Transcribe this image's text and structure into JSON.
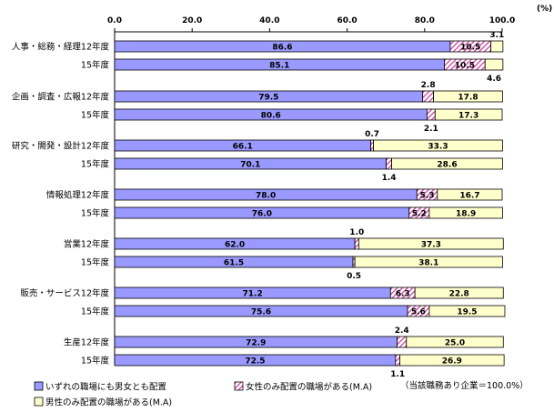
{
  "chart_data": {
    "type": "bar",
    "stacked": true,
    "orientation": "horizontal",
    "unit_label": "(%)",
    "xlim": [
      0,
      100
    ],
    "xticks": [
      "0.0",
      "20.0",
      "40.0",
      "60.0",
      "80.0",
      "100.0"
    ],
    "groups": [
      "人事・総務・経理",
      "企画・調査・広報",
      "研究・開発・設計",
      "情報処理",
      "営業",
      "販売・サービス",
      "生産"
    ],
    "rows": [
      {
        "label": "人事・総務・経理12年度",
        "values": [
          86.6,
          10.5,
          3.1
        ],
        "labels": [
          "86.6",
          "10.5",
          "3.1"
        ]
      },
      {
        "label": "15年度",
        "values": [
          85.1,
          10.5,
          4.6
        ],
        "labels": [
          "85.1",
          "10.5",
          "4.6"
        ]
      },
      {
        "label": "企画・調査・広報12年度",
        "values": [
          79.5,
          2.8,
          17.8
        ],
        "labels": [
          "79.5",
          "2.8",
          "17.8"
        ]
      },
      {
        "label": "15年度",
        "values": [
          80.6,
          2.1,
          17.3
        ],
        "labels": [
          "80.6",
          "2.1",
          "17.3"
        ]
      },
      {
        "label": "研究・開発・設計12年度",
        "values": [
          66.1,
          0.7,
          33.3
        ],
        "labels": [
          "66.1",
          "0.7",
          "33.3"
        ]
      },
      {
        "label": "15年度",
        "values": [
          70.1,
          1.4,
          28.6
        ],
        "labels": [
          "70.1",
          "1.4",
          "28.6"
        ]
      },
      {
        "label": "情報処理12年度",
        "values": [
          78.0,
          5.3,
          16.7
        ],
        "labels": [
          "78.0",
          "5.3",
          "16.7"
        ]
      },
      {
        "label": "15年度",
        "values": [
          76.0,
          5.2,
          18.9
        ],
        "labels": [
          "76.0",
          "5.2",
          "18.9"
        ]
      },
      {
        "label": "営業12年度",
        "values": [
          62.0,
          1.0,
          37.3
        ],
        "labels": [
          "62.0",
          "1.0",
          "37.3"
        ]
      },
      {
        "label": "15年度",
        "values": [
          61.5,
          0.5,
          38.1
        ],
        "labels": [
          "61.5",
          "0.5",
          "38.1"
        ]
      },
      {
        "label": "販売・サービス12年度",
        "values": [
          71.2,
          6.3,
          22.8
        ],
        "labels": [
          "71.2",
          "6.3",
          "22.8"
        ]
      },
      {
        "label": "15年度",
        "values": [
          75.6,
          5.6,
          19.5
        ],
        "labels": [
          "75.6",
          "5.6",
          "19.5"
        ]
      },
      {
        "label": "生産12年度",
        "values": [
          72.9,
          2.4,
          25.0
        ],
        "labels": [
          "72.9",
          "2.4",
          "25.0"
        ]
      },
      {
        "label": "15年度",
        "values": [
          72.5,
          1.1,
          26.9
        ],
        "labels": [
          "72.5",
          "1.1",
          "26.9"
        ]
      }
    ],
    "series": [
      {
        "name": "いずれの職場にも男女とも配置",
        "color": "#9999ff",
        "pattern": "solid"
      },
      {
        "name": "女性のみ配置の職場がある(M.A)",
        "color": "#cc3399",
        "pattern": "hatch"
      },
      {
        "name": "男性のみ配置の職場がある(M.A)",
        "color": "#ffffcc",
        "pattern": "solid"
      }
    ],
    "note": "（当該職務あり企業＝100.0%）",
    "legend_position": "bottom-left",
    "grid": false
  }
}
